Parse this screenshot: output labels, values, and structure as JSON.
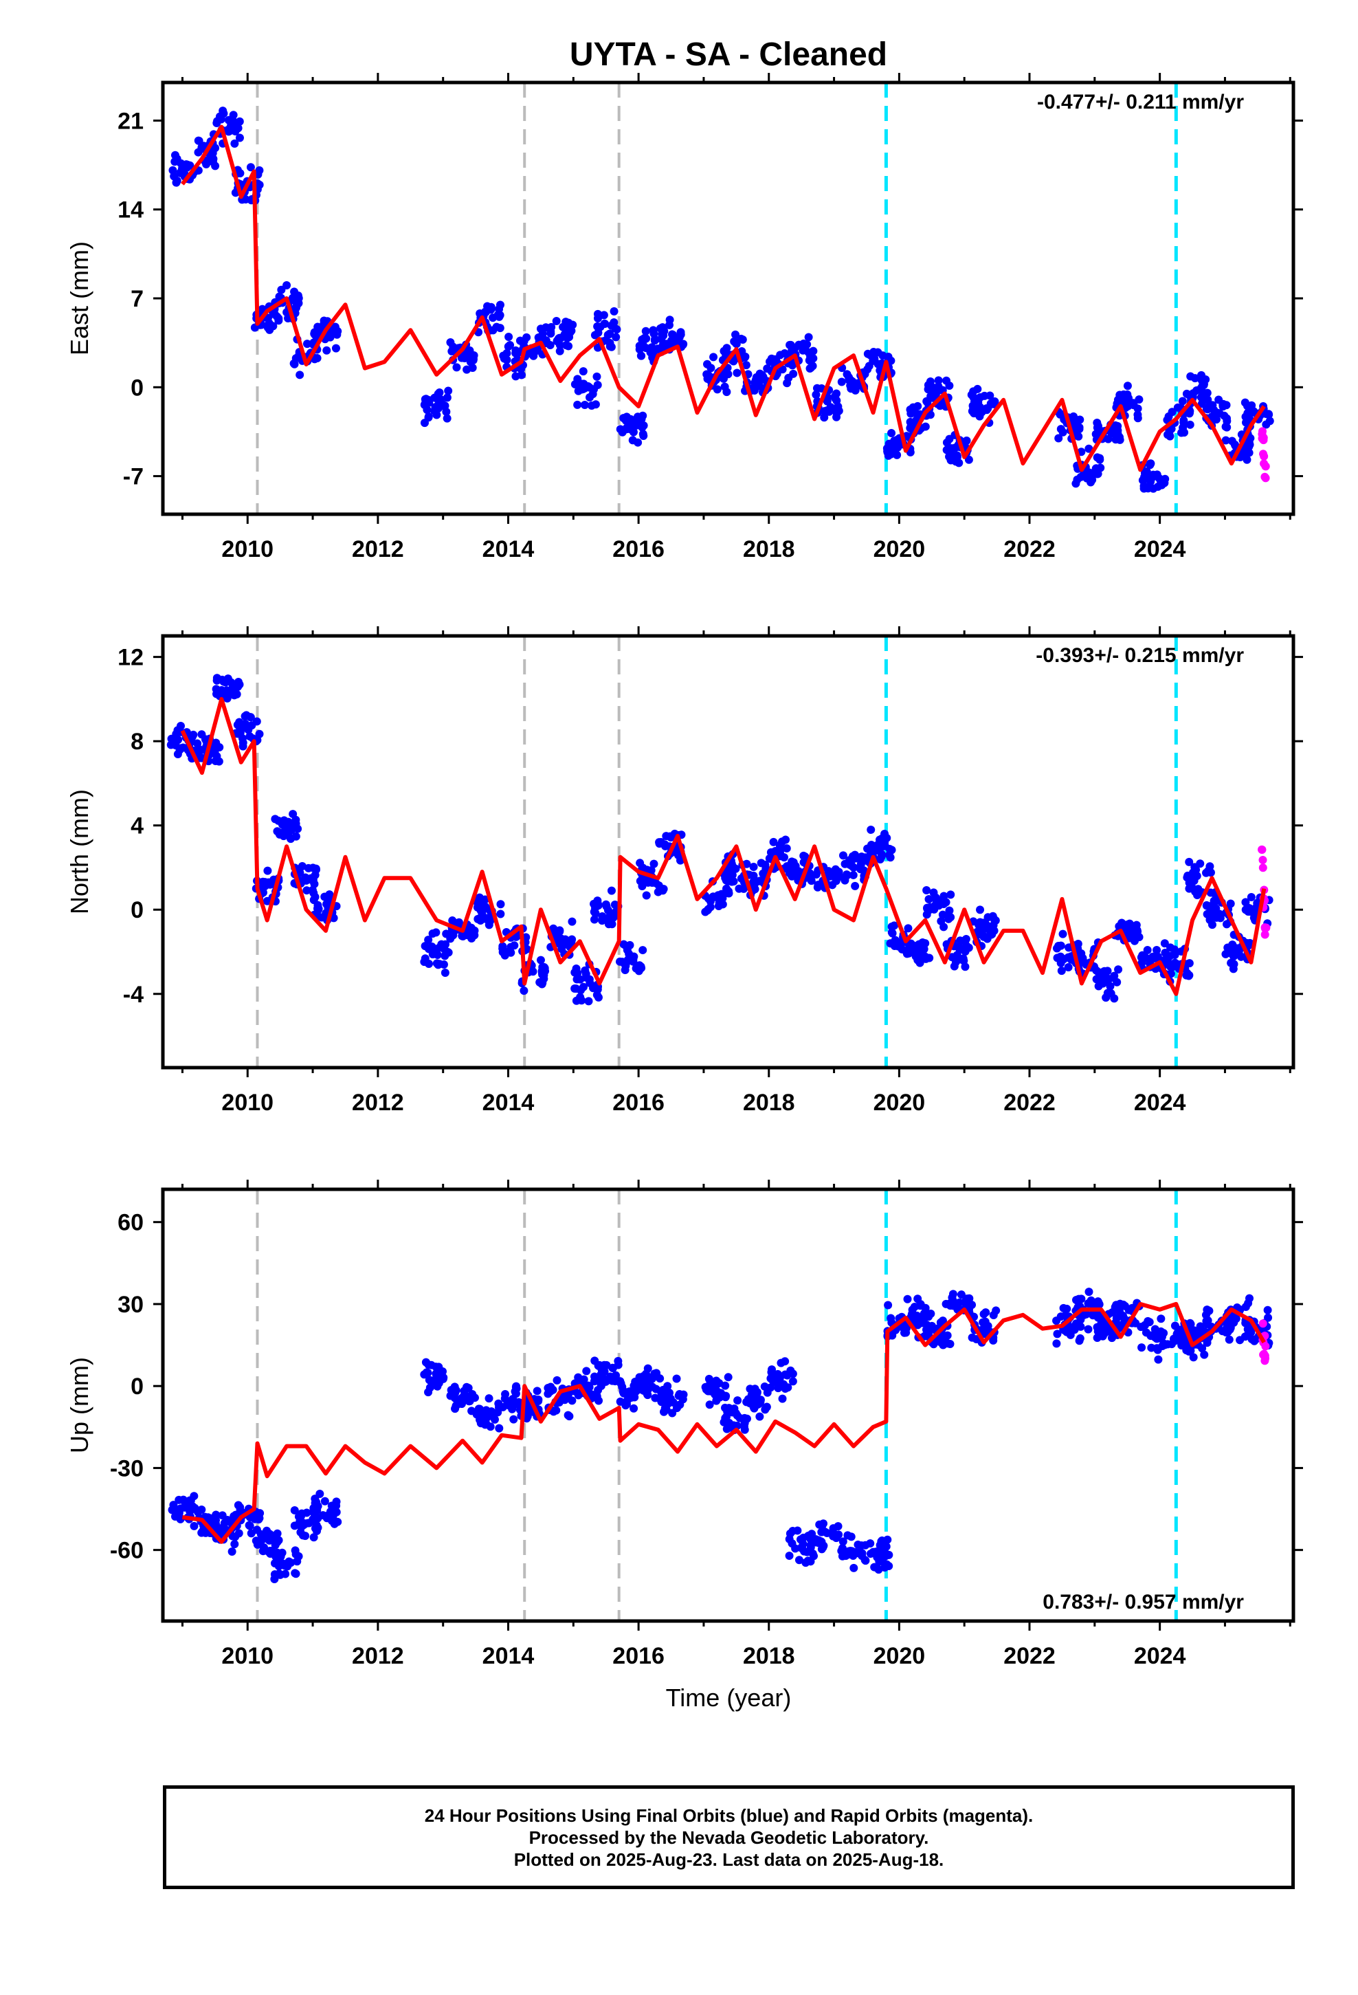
{
  "title": "UYTA  - SA - Cleaned",
  "xlabel": "Time (year)",
  "footer": {
    "line1": "24 Hour Positions Using Final Orbits (blue) and Rapid Orbits (magenta).",
    "line2": "Processed by the Nevada Geodetic Laboratory.",
    "line3": "Plotted on 2025-Aug-23. Last data on 2025-Aug-18."
  },
  "colors": {
    "final": "#0000ff",
    "rapid": "#ff00ff",
    "model": "#ff0000",
    "equipment_change": "#bbbbbb",
    "earthquake": "#00e5ff"
  },
  "chart_data": [
    {
      "type": "scatter",
      "component": "east",
      "ylabel": "East (mm)",
      "rate": "-0.477+/- 0.211 mm/yr",
      "xlim": [
        2008.7,
        2026.05
      ],
      "ylim": [
        -10,
        24
      ],
      "xticks": [
        2010,
        2012,
        2014,
        2016,
        2018,
        2020,
        2022,
        2024
      ],
      "yticks": [
        21,
        14,
        7,
        0,
        -7
      ],
      "equipment_changes": [
        2010.15,
        2014.25,
        2015.7
      ],
      "earthquakes": [
        2019.8,
        2024.25
      ],
      "series": [
        {
          "name": "Final Orbits",
          "color": "#0000ff",
          "x": [
            2009.0,
            2009.4,
            2009.7,
            2010.0,
            2010.3,
            2010.6,
            2010.9,
            2011.2,
            2012.9,
            2013.3,
            2013.7,
            2014.1,
            2014.4,
            2014.8,
            2015.2,
            2015.5,
            2015.9,
            2016.2,
            2016.5,
            2017.2,
            2017.5,
            2017.8,
            2018.2,
            2018.5,
            2018.9,
            2019.3,
            2019.7,
            2020.0,
            2020.3,
            2020.6,
            2020.9,
            2021.3,
            2022.6,
            2022.9,
            2023.2,
            2023.5,
            2023.9,
            2024.3,
            2024.6,
            2024.9,
            2025.2,
            2025.5
          ],
          "y": [
            17,
            18.5,
            20.5,
            16,
            5.5,
            6.5,
            2.5,
            4.5,
            -1.5,
            2.5,
            5.5,
            2.5,
            3.5,
            4,
            0,
            4.5,
            -3,
            3,
            4,
            1,
            2.5,
            0.5,
            1.5,
            2.5,
            -1.5,
            0.5,
            1.5,
            -4.5,
            -2.5,
            -0.5,
            -5,
            -1.5,
            -3,
            -6.5,
            -3.5,
            -1.5,
            -7,
            -2.5,
            -0.5,
            -2,
            -4.5,
            -2
          ]
        },
        {
          "name": "Rapid Orbits",
          "color": "#ff00ff",
          "x": [
            2025.58,
            2025.6,
            2025.62
          ],
          "y": [
            -3.5,
            -5,
            -6.5
          ]
        }
      ],
      "model": {
        "x": [
          2009.0,
          2009.3,
          2009.6,
          2009.9,
          2010.1,
          2010.15,
          2010.3,
          2010.6,
          2010.9,
          2011.2,
          2011.5,
          2011.8,
          2012.1,
          2012.5,
          2012.9,
          2013.3,
          2013.6,
          2013.9,
          2014.2,
          2014.25,
          2014.5,
          2014.8,
          2015.1,
          2015.4,
          2015.7,
          2016.0,
          2016.3,
          2016.6,
          2016.9,
          2017.2,
          2017.5,
          2017.8,
          2018.1,
          2018.4,
          2018.7,
          2019.0,
          2019.3,
          2019.6,
          2019.8,
          2020.1,
          2020.4,
          2020.7,
          2021.0,
          2021.3,
          2021.6,
          2021.9,
          2022.2,
          2022.5,
          2022.8,
          2023.1,
          2023.4,
          2023.7,
          2024.0,
          2024.25,
          2024.5,
          2024.8,
          2025.1,
          2025.4,
          2025.6
        ],
        "y": [
          16,
          18,
          20.5,
          15,
          17,
          5,
          6,
          7,
          1.8,
          4.5,
          6.5,
          1.5,
          2,
          4.5,
          1,
          3,
          5.5,
          1,
          2,
          3,
          3.5,
          0.5,
          2.5,
          3.8,
          0,
          -1.5,
          2.5,
          3.2,
          -2,
          1,
          3,
          -2.2,
          1.5,
          2.5,
          -2.5,
          1.5,
          2.5,
          -2,
          2,
          -5,
          -2,
          -0.5,
          -5.5,
          -3,
          -1,
          -6,
          -3.5,
          -1,
          -6.5,
          -4,
          -1.5,
          -6.5,
          -3.5,
          -2.5,
          -1,
          -3,
          -6,
          -3,
          -1.5
        ]
      }
    },
    {
      "type": "scatter",
      "component": "north",
      "ylabel": "North (mm)",
      "rate": "-0.393+/- 0.215 mm/yr",
      "xlim": [
        2008.7,
        2026.05
      ],
      "ylim": [
        -7.5,
        13
      ],
      "xticks": [
        2010,
        2012,
        2014,
        2016,
        2018,
        2020,
        2022,
        2024
      ],
      "yticks": [
        12,
        8,
        4,
        0,
        -4
      ],
      "equipment_changes": [
        2010.15,
        2014.25,
        2015.7
      ],
      "earthquakes": [
        2019.8,
        2024.25
      ],
      "series": [
        {
          "name": "Final Orbits",
          "color": "#0000ff",
          "x": [
            2009.0,
            2009.4,
            2009.7,
            2010.0,
            2010.3,
            2010.6,
            2010.9,
            2011.2,
            2012.9,
            2013.3,
            2013.7,
            2014.1,
            2014.4,
            2014.8,
            2015.2,
            2015.5,
            2015.9,
            2016.2,
            2016.5,
            2017.2,
            2017.5,
            2017.8,
            2018.2,
            2018.5,
            2018.9,
            2019.3,
            2019.7,
            2020.0,
            2020.3,
            2020.6,
            2020.9,
            2021.3,
            2022.6,
            2022.9,
            2023.2,
            2023.5,
            2023.9,
            2024.3,
            2024.6,
            2024.9,
            2025.2,
            2025.5
          ],
          "y": [
            8,
            7.5,
            10.5,
            8.5,
            1,
            4,
            1.5,
            0,
            -2,
            -1,
            0,
            -1.5,
            -3,
            -1.5,
            -3.5,
            0,
            -2.5,
            1.5,
            3,
            0.5,
            2,
            1.5,
            2.5,
            2,
            1.5,
            2,
            3,
            -1.5,
            -2,
            0,
            -2,
            -1,
            -2,
            -2.5,
            -3.5,
            -1,
            -2.5,
            -2.5,
            1.5,
            0,
            -2,
            0
          ]
        },
        {
          "name": "Rapid Orbits",
          "color": "#ff00ff",
          "x": [
            2025.58,
            2025.6,
            2025.62
          ],
          "y": [
            2.5,
            0.5,
            -1
          ]
        }
      ],
      "model": {
        "x": [
          2009.0,
          2009.3,
          2009.6,
          2009.9,
          2010.1,
          2010.15,
          2010.3,
          2010.6,
          2010.9,
          2011.2,
          2011.5,
          2011.8,
          2012.1,
          2012.5,
          2012.9,
          2013.3,
          2013.6,
          2013.9,
          2014.2,
          2014.25,
          2014.5,
          2014.8,
          2015.1,
          2015.4,
          2015.7,
          2015.72,
          2016.0,
          2016.3,
          2016.6,
          2016.9,
          2017.2,
          2017.5,
          2017.8,
          2018.1,
          2018.4,
          2018.7,
          2019.0,
          2019.3,
          2019.6,
          2019.8,
          2020.1,
          2020.4,
          2020.7,
          2021.0,
          2021.3,
          2021.6,
          2021.9,
          2022.2,
          2022.5,
          2022.8,
          2023.1,
          2023.4,
          2023.7,
          2024.0,
          2024.25,
          2024.5,
          2024.8,
          2025.1,
          2025.4,
          2025.6
        ],
        "y": [
          8.5,
          6.5,
          10,
          7,
          8,
          1,
          -0.5,
          3,
          0,
          -1,
          2.5,
          -0.5,
          1.5,
          1.5,
          -0.5,
          -1,
          1.8,
          -1.5,
          -0.8,
          -3.5,
          0,
          -2.5,
          -1.5,
          -3.5,
          -1.5,
          2.5,
          1.8,
          1.5,
          3.5,
          0.5,
          1.5,
          3,
          0,
          2.5,
          0.5,
          3,
          0,
          -0.5,
          2.5,
          1,
          -1.5,
          -0.5,
          -2.5,
          0,
          -2.5,
          -1,
          -1,
          -3,
          0.5,
          -3.5,
          -1.5,
          -1,
          -3,
          -2.5,
          -4,
          -0.5,
          1.5,
          -0.5,
          -2.5,
          1
        ]
      }
    },
    {
      "type": "scatter",
      "component": "up",
      "ylabel": "Up (mm)",
      "rate": "0.783+/- 0.957 mm/yr",
      "xlim": [
        2008.7,
        2026.05
      ],
      "ylim": [
        -86,
        72
      ],
      "xticks": [
        2010,
        2012,
        2014,
        2016,
        2018,
        2020,
        2022,
        2024
      ],
      "yticks": [
        60,
        30,
        0,
        -30,
        -60
      ],
      "equipment_changes": [
        2010.15,
        2014.25,
        2015.7
      ],
      "earthquakes": [
        2019.8,
        2024.25
      ],
      "series": [
        {
          "name": "Final Orbits",
          "color": "#0000ff",
          "x": [
            2009.0,
            2009.4,
            2009.7,
            2010.0,
            2010.3,
            2010.6,
            2010.9,
            2011.2,
            2012.9,
            2013.3,
            2013.7,
            2014.1,
            2014.4,
            2014.8,
            2015.2,
            2015.5,
            2015.9,
            2016.2,
            2016.5,
            2017.2,
            2017.5,
            2017.8,
            2018.2,
            2018.5,
            2018.9,
            2019.3,
            2019.7,
            2020.0,
            2020.3,
            2020.6,
            2020.9,
            2021.3,
            2022.6,
            2022.9,
            2023.2,
            2023.5,
            2023.9,
            2024.3,
            2024.6,
            2024.9,
            2025.2,
            2025.5
          ],
          "y": [
            -45,
            -50,
            -53,
            -47,
            -58,
            -65,
            -50,
            -45,
            3,
            -5,
            -10,
            -5,
            -8,
            -5,
            -2,
            5,
            -3,
            2,
            -5,
            -2,
            -12,
            -5,
            3,
            -58,
            -55,
            -60,
            -62,
            22,
            25,
            20,
            30,
            22,
            23,
            28,
            22,
            25,
            18,
            18,
            17,
            22,
            25,
            20
          ]
        },
        {
          "name": "Rapid Orbits",
          "color": "#ff00ff",
          "x": [
            2025.58,
            2025.6,
            2025.62
          ],
          "y": [
            18,
            14,
            11
          ]
        }
      ],
      "model": {
        "x": [
          2009.0,
          2009.3,
          2009.6,
          2009.9,
          2010.1,
          2010.15,
          2010.3,
          2010.6,
          2010.9,
          2011.2,
          2011.5,
          2011.8,
          2012.1,
          2012.5,
          2012.9,
          2013.3,
          2013.6,
          2013.9,
          2014.2,
          2014.25,
          2014.5,
          2014.8,
          2015.1,
          2015.4,
          2015.7,
          2015.72,
          2016.0,
          2016.3,
          2016.6,
          2016.9,
          2017.2,
          2017.5,
          2017.8,
          2018.1,
          2018.4,
          2018.7,
          2019.0,
          2019.3,
          2019.6,
          2019.8,
          2019.82,
          2020.1,
          2020.4,
          2020.7,
          2021.0,
          2021.3,
          2021.6,
          2021.9,
          2022.2,
          2022.5,
          2022.8,
          2023.1,
          2023.4,
          2023.7,
          2024.0,
          2024.25,
          2024.5,
          2024.8,
          2025.1,
          2025.4,
          2025.6
        ],
        "y": [
          -48,
          -49,
          -57,
          -48,
          -45,
          -21,
          -33,
          -22,
          -22,
          -32,
          -22,
          -28,
          -32,
          -22,
          -30,
          -20,
          -28,
          -18,
          -19,
          0,
          -13,
          -2,
          0,
          -12,
          -8,
          -20,
          -14,
          -16,
          -24,
          -14,
          -22,
          -16,
          -24,
          -13,
          -17,
          -22,
          -14,
          -22,
          -15,
          -13,
          20,
          25,
          15,
          22,
          28,
          16,
          24,
          26,
          21,
          22,
          28,
          28,
          18,
          30,
          28,
          30,
          15,
          20,
          28,
          24,
          16
        ]
      }
    }
  ]
}
